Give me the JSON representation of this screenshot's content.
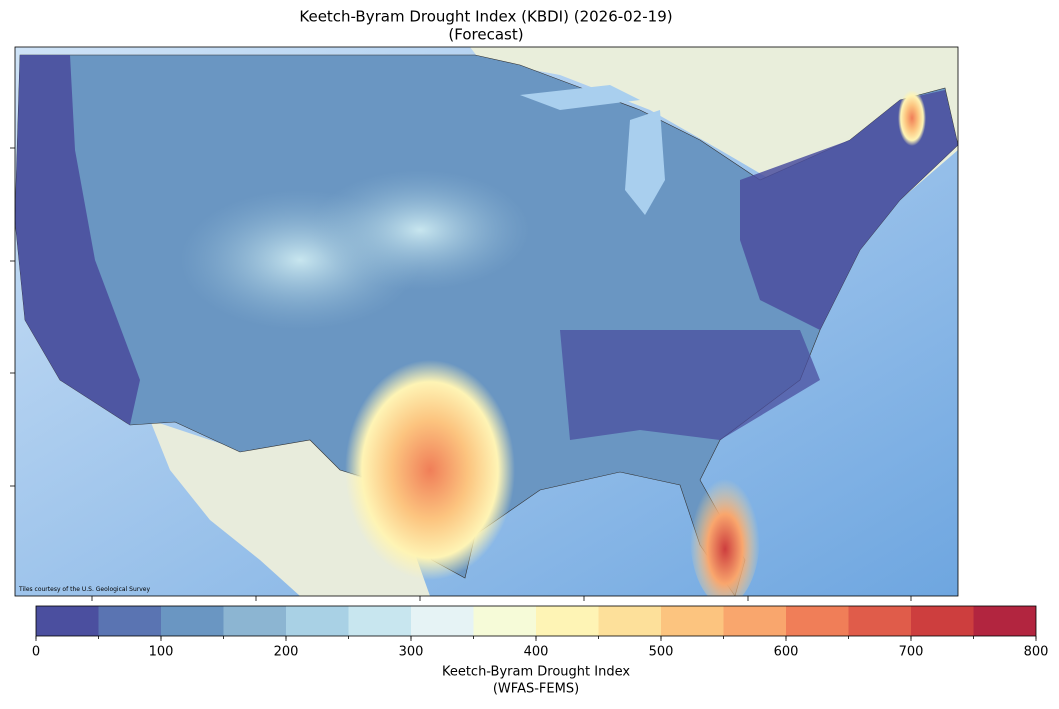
{
  "title": "Keetch-Byram Drought Index (KBDI) (2026-02-19)",
  "subtitle": "(Forecast)",
  "map": {
    "attribution": "Tiles courtesy of the U.S. Geological Survey"
  },
  "colorbar": {
    "label": "Keetch-Byram Drought Index",
    "sublabel": "(WFAS-FEMS)",
    "lim": [
      0,
      800
    ],
    "bounds": [
      0,
      50,
      100,
      150,
      200,
      250,
      300,
      350,
      400,
      450,
      500,
      550,
      600,
      650,
      700,
      750,
      800
    ],
    "colors": [
      "#4b4f9f",
      "#5a74b2",
      "#6a96c2",
      "#8cb5d2",
      "#a9d1e5",
      "#c8e6ef",
      "#e6f3f5",
      "#f6fbd8",
      "#fef4b5",
      "#fde09a",
      "#fcc47f",
      "#f9a66d",
      "#f07e58",
      "#e05c4a",
      "#cd3e3e",
      "#b2253f"
    ],
    "ticks": [
      0,
      100,
      200,
      300,
      400,
      500,
      600,
      700,
      800
    ]
  }
}
